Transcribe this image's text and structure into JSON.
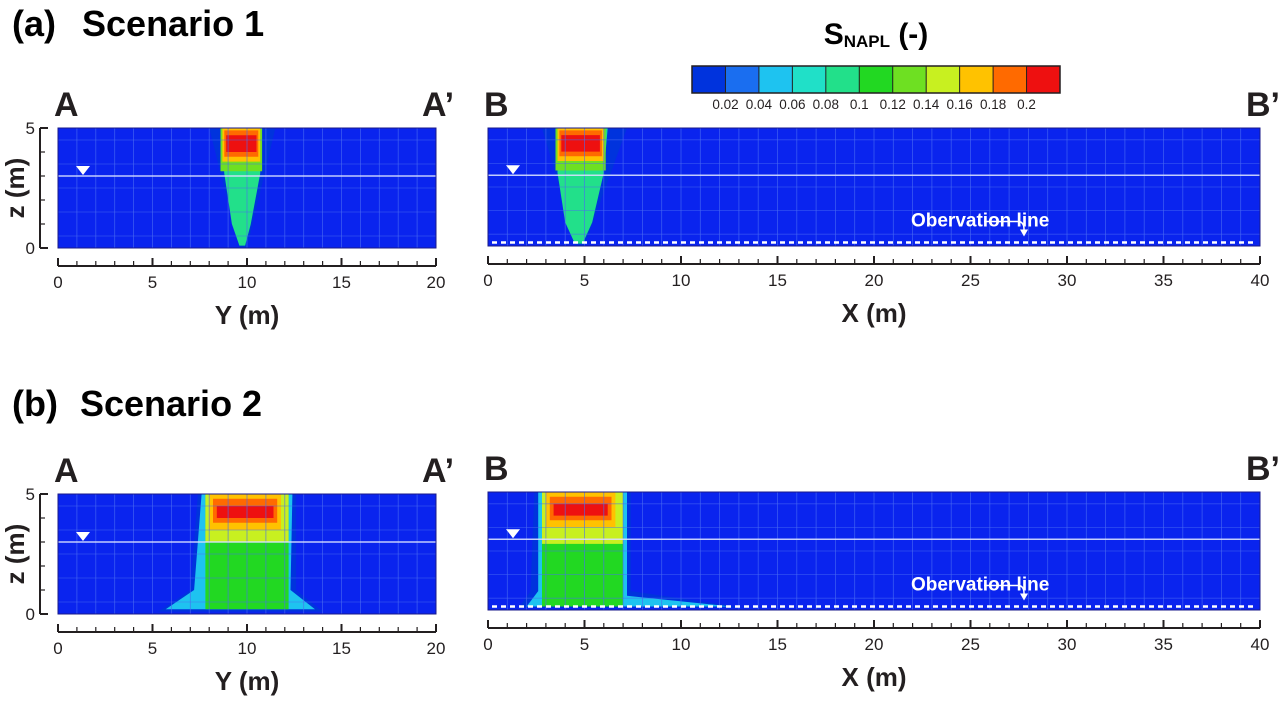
{
  "colorbar": {
    "title_main": "S",
    "title_sub": "NAPL",
    "title_suffix": " (-)",
    "tick_labels": [
      "0.02",
      "0.04",
      "0.06",
      "0.08",
      "0.1",
      "0.12",
      "0.14",
      "0.16",
      "0.18",
      "0.2"
    ],
    "colors": [
      "#0033dd",
      "#1a6ef0",
      "#1ec3f0",
      "#20e0c8",
      "#22e08a",
      "#22d822",
      "#6ee022",
      "#c8f020",
      "#ffc200",
      "#ff6a00",
      "#ee1010"
    ]
  },
  "colors": {
    "background_field": "#0a24ee",
    "water_table_marker": "#ffffff",
    "observation_line": "#ffffff",
    "grid_lines": "#4a6cf2"
  },
  "chart_data": [
    {
      "type": "heatmap",
      "panel": "(a)",
      "title": "Scenario 1",
      "section_start": "A",
      "section_end": "A’",
      "xlabel": "Y (m)",
      "ylabel": "z (m)",
      "xlim": [
        0,
        20
      ],
      "ylim": [
        0,
        5
      ],
      "x_ticks": [
        "0",
        "5",
        "10",
        "15",
        "20"
      ],
      "y_ticks": [
        "0",
        "5"
      ],
      "water_table_z": 3,
      "observation_line_label": "",
      "plume": [
        {
          "level": 0.01,
          "polygon": [
            [
              8,
              5
            ],
            [
              11.5,
              5
            ],
            [
              10,
              0
            ],
            [
              9.6,
              0
            ]
          ]
        },
        {
          "level": 0.09,
          "polygon": [
            [
              8.6,
              5
            ],
            [
              10.8,
              5
            ],
            [
              10.7,
              3.1
            ],
            [
              10.2,
              1
            ],
            [
              9.9,
              0.1
            ],
            [
              9.6,
              0.1
            ],
            [
              9.2,
              1
            ],
            [
              8.8,
              3.1
            ]
          ]
        },
        {
          "level": 0.14,
          "polygon": [
            [
              8.6,
              5
            ],
            [
              10.8,
              5
            ],
            [
              10.8,
              3.2
            ],
            [
              8.6,
              3.2
            ]
          ]
        },
        {
          "level": 0.17,
          "polygon": [
            [
              8.7,
              5
            ],
            [
              10.7,
              5
            ],
            [
              10.7,
              3.6
            ],
            [
              8.7,
              3.6
            ]
          ]
        },
        {
          "level": 0.19,
          "polygon": [
            [
              8.8,
              4.9
            ],
            [
              10.6,
              4.9
            ],
            [
              10.6,
              3.8
            ],
            [
              8.8,
              3.8
            ]
          ]
        },
        {
          "level": 0.21,
          "polygon": [
            [
              8.9,
              4.7
            ],
            [
              10.5,
              4.7
            ],
            [
              10.5,
              4.0
            ],
            [
              8.9,
              4.0
            ]
          ]
        }
      ]
    },
    {
      "type": "heatmap",
      "panel": "(a)",
      "title": "Scenario 1",
      "section_start": "B",
      "section_end": "B’",
      "xlabel": "X (m)",
      "ylabel": "",
      "xlim": [
        0,
        40
      ],
      "ylim": [
        0,
        5
      ],
      "x_ticks": [
        "0",
        "5",
        "10",
        "15",
        "20",
        "25",
        "30",
        "35",
        "40"
      ],
      "y_ticks": [],
      "water_table_z": 3,
      "observation_line_label": "Obervation line",
      "observation_line_z": 0.15,
      "plume": [
        {
          "level": 0.01,
          "polygon": [
            [
              2.8,
              5
            ],
            [
              7.2,
              5
            ],
            [
              5,
              0
            ],
            [
              4.6,
              0
            ]
          ]
        },
        {
          "level": 0.09,
          "polygon": [
            [
              3.6,
              5
            ],
            [
              6.2,
              5
            ],
            [
              6.0,
              3.1
            ],
            [
              5.4,
              1
            ],
            [
              4.9,
              0.1
            ],
            [
              4.5,
              0.1
            ],
            [
              4.0,
              1
            ],
            [
              3.6,
              3.1
            ]
          ]
        },
        {
          "level": 0.14,
          "polygon": [
            [
              3.5,
              5
            ],
            [
              6.1,
              5
            ],
            [
              6.1,
              3.2
            ],
            [
              3.5,
              3.2
            ]
          ]
        },
        {
          "level": 0.17,
          "polygon": [
            [
              3.6,
              5
            ],
            [
              6.0,
              5
            ],
            [
              6.0,
              3.6
            ],
            [
              3.6,
              3.6
            ]
          ]
        },
        {
          "level": 0.19,
          "polygon": [
            [
              3.7,
              4.9
            ],
            [
              5.9,
              4.9
            ],
            [
              5.9,
              3.8
            ],
            [
              3.7,
              3.8
            ]
          ]
        },
        {
          "level": 0.21,
          "polygon": [
            [
              3.8,
              4.7
            ],
            [
              5.8,
              4.7
            ],
            [
              5.8,
              4.0
            ],
            [
              3.8,
              4.0
            ]
          ]
        }
      ]
    },
    {
      "type": "heatmap",
      "panel": "(b)",
      "title": "Scenario 2",
      "section_start": "A",
      "section_end": "A’",
      "xlabel": "Y (m)",
      "ylabel": "z (m)",
      "xlim": [
        0,
        20
      ],
      "ylim": [
        0,
        5
      ],
      "x_ticks": [
        "0",
        "5",
        "10",
        "15",
        "20"
      ],
      "y_ticks": [
        "0",
        "5"
      ],
      "water_table_z": 3,
      "observation_line_label": "",
      "plume": [
        {
          "level": 0.01,
          "polygon": [
            [
              7.4,
              5
            ],
            [
              12.6,
              5
            ],
            [
              12.6,
              1.0
            ],
            [
              14.0,
              0.1
            ],
            [
              5.3,
              0.1
            ],
            [
              7.0,
              1.0
            ]
          ]
        },
        {
          "level": 0.05,
          "polygon": [
            [
              7.6,
              5
            ],
            [
              12.4,
              5
            ],
            [
              12.3,
              1.0
            ],
            [
              13.6,
              0.2
            ],
            [
              5.7,
              0.2
            ],
            [
              7.2,
              1.0
            ]
          ]
        },
        {
          "level": 0.11,
          "polygon": [
            [
              7.8,
              5
            ],
            [
              12.2,
              5
            ],
            [
              12.2,
              0.2
            ],
            [
              7.8,
              0.2
            ]
          ]
        },
        {
          "level": 0.15,
          "polygon": [
            [
              7.8,
              5
            ],
            [
              12.2,
              5
            ],
            [
              12.2,
              3.0
            ],
            [
              7.8,
              3.0
            ]
          ]
        },
        {
          "level": 0.17,
          "polygon": [
            [
              8.0,
              5
            ],
            [
              11.8,
              5
            ],
            [
              11.8,
              3.5
            ],
            [
              8.0,
              3.5
            ]
          ]
        },
        {
          "level": 0.19,
          "polygon": [
            [
              8.2,
              4.8
            ],
            [
              11.6,
              4.8
            ],
            [
              11.6,
              3.8
            ],
            [
              8.2,
              3.8
            ]
          ]
        },
        {
          "level": 0.21,
          "polygon": [
            [
              8.4,
              4.5
            ],
            [
              11.4,
              4.5
            ],
            [
              11.4,
              4.0
            ],
            [
              8.4,
              4.0
            ]
          ]
        }
      ]
    },
    {
      "type": "heatmap",
      "panel": "(b)",
      "title": "Scenario 2",
      "section_start": "B",
      "section_end": "B’",
      "xlabel": "X (m)",
      "ylabel": "",
      "xlim": [
        0,
        40
      ],
      "ylim": [
        0,
        5
      ],
      "x_ticks": [
        "0",
        "5",
        "10",
        "15",
        "20",
        "25",
        "30",
        "35",
        "40"
      ],
      "y_ticks": [],
      "water_table_z": 3,
      "observation_line_label": "Obervation line",
      "observation_line_z": 0.15,
      "plume": [
        {
          "level": 0.01,
          "polygon": [
            [
              2.4,
              5
            ],
            [
              7.4,
              5
            ],
            [
              7.4,
              0.8
            ],
            [
              13.3,
              0.1
            ],
            [
              1.6,
              0.1
            ],
            [
              2.2,
              0.8
            ]
          ]
        },
        {
          "level": 0.05,
          "polygon": [
            [
              2.6,
              5
            ],
            [
              7.2,
              5
            ],
            [
              7.2,
              0.6
            ],
            [
              12.6,
              0.15
            ],
            [
              2.0,
              0.15
            ],
            [
              2.6,
              0.8
            ]
          ]
        },
        {
          "level": 0.11,
          "polygon": [
            [
              2.8,
              5
            ],
            [
              7.0,
              5
            ],
            [
              7.0,
              0.15
            ],
            [
              2.8,
              0.15
            ]
          ]
        },
        {
          "level": 0.15,
          "polygon": [
            [
              2.8,
              5
            ],
            [
              7.0,
              5
            ],
            [
              7.0,
              2.8
            ],
            [
              2.8,
              2.8
            ]
          ]
        },
        {
          "level": 0.17,
          "polygon": [
            [
              3.0,
              5
            ],
            [
              6.6,
              5
            ],
            [
              6.6,
              3.5
            ],
            [
              3.0,
              3.5
            ]
          ]
        },
        {
          "level": 0.19,
          "polygon": [
            [
              3.2,
              4.8
            ],
            [
              6.4,
              4.8
            ],
            [
              6.4,
              3.8
            ],
            [
              3.2,
              3.8
            ]
          ]
        },
        {
          "level": 0.21,
          "polygon": [
            [
              3.4,
              4.5
            ],
            [
              6.2,
              4.5
            ],
            [
              6.2,
              4.0
            ],
            [
              3.4,
              4.0
            ]
          ]
        }
      ]
    }
  ]
}
